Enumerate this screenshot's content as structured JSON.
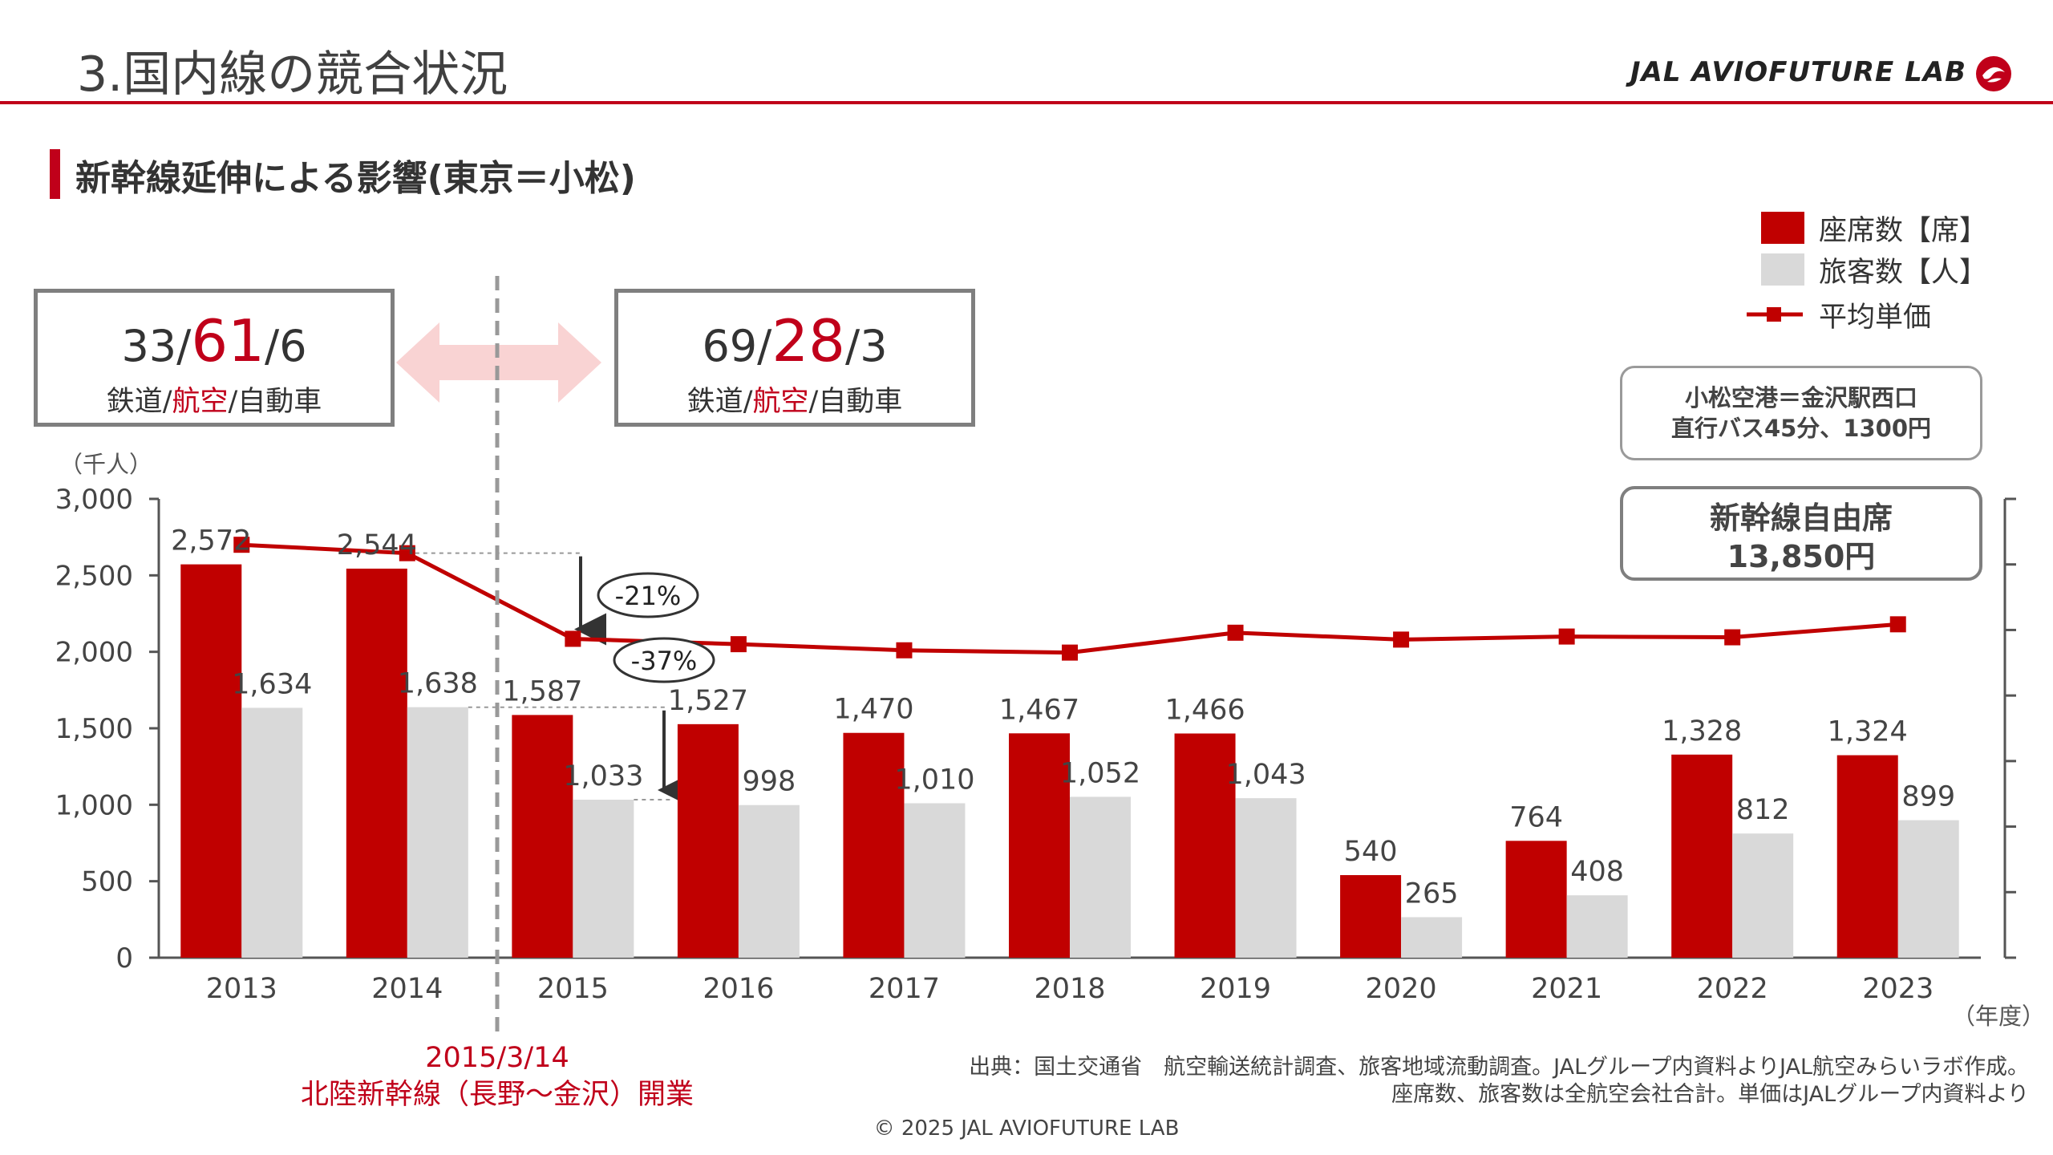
{
  "header": {
    "title": "3.国内線の競合状況",
    "brand": "JAL AVIOFUTURE LAB",
    "brand_color": "#c0001a"
  },
  "section": {
    "title": "新幹線延伸による影響(東京＝小松)"
  },
  "share_before": {
    "rail": "33",
    "air": "61",
    "car": "6",
    "rail_label": "鉄道",
    "air_label": "航空",
    "car_label": "自動車"
  },
  "share_after": {
    "rail": "69",
    "air": "28",
    "car": "3",
    "rail_label": "鉄道",
    "air_label": "航空",
    "car_label": "自動車"
  },
  "bus_note": {
    "line1": "小松空港＝金沢駅西口",
    "line2": "直行バス45分、1300円"
  },
  "shinkansen_note": {
    "line1": "新幹線自由席",
    "line2": "13,850円"
  },
  "event": {
    "date": "2015/3/14",
    "description": "北陸新幹線（長野～金沢）開業"
  },
  "source": {
    "line1": "出典：国土交通省　航空輸送統計調査、旅客地域流動調査。JALグループ内資料よりJAL航空みらいラボ作成。",
    "line2": "座席数、旅客数は全航空会社合計。単価はJALグループ内資料より"
  },
  "copyright": "© 2025 JAL AVIOFUTURE LAB",
  "chart_data": {
    "type": "bar",
    "categories": [
      "2013",
      "2014",
      "2015",
      "2016",
      "2017",
      "2018",
      "2019",
      "2020",
      "2021",
      "2022",
      "2023"
    ],
    "series": [
      {
        "name": "座席数【席】",
        "kind": "bar",
        "color": "#c00000",
        "values": [
          2572,
          2544,
          1587,
          1527,
          1470,
          1467,
          1466,
          540,
          764,
          1328,
          1324
        ],
        "labels": [
          "2,572",
          "2,544",
          "1,587",
          "1,527",
          "1,470",
          "1,467",
          "1,466",
          "540",
          "764",
          "1,328",
          "1,324"
        ]
      },
      {
        "name": "旅客数【人】",
        "kind": "bar",
        "color": "#d9d9d9",
        "values": [
          1634,
          1638,
          1033,
          998,
          1010,
          1052,
          1043,
          265,
          408,
          812,
          899
        ],
        "labels": [
          "1,634",
          "1,638",
          "1,033",
          "998",
          "1,010",
          "1,052",
          "1,043",
          "265",
          "408",
          "812",
          "899"
        ]
      },
      {
        "name": "平均単価",
        "kind": "line",
        "color": "#c00000",
        "values": [
          2700,
          2645,
          2085,
          2050,
          2010,
          1995,
          2125,
          2080,
          2100,
          2095,
          2180
        ]
      }
    ],
    "ylabel": "（千人）",
    "xlabel": "（年度）",
    "ylim": [
      0,
      3000
    ],
    "yticks": [
      "0",
      "500",
      "1,000",
      "1,500",
      "2,000",
      "2,500",
      "3,000"
    ],
    "annotations": [
      "-21%",
      "-37%"
    ],
    "legend": "top-right",
    "grid": false
  }
}
